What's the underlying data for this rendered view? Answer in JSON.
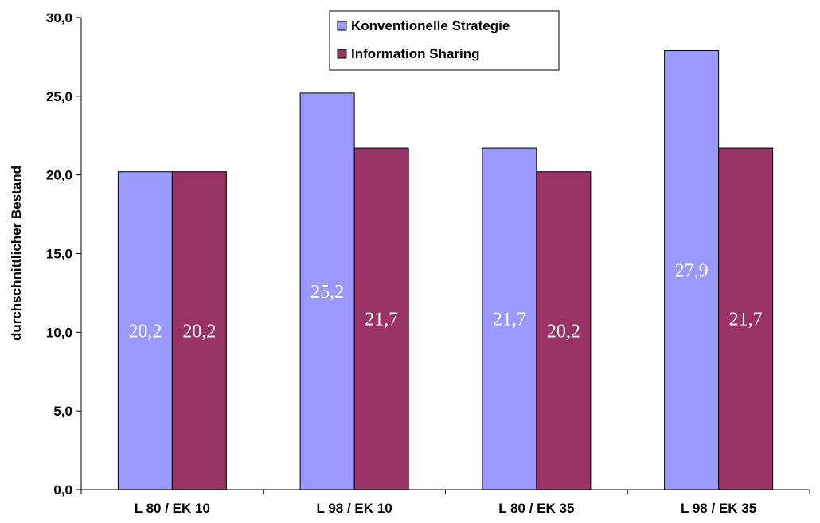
{
  "chart_data": {
    "type": "bar",
    "title": "",
    "xlabel": "",
    "ylabel": "durchschnittlicher Bestand",
    "ylim": [
      0,
      30
    ],
    "yticks": [
      "0,0",
      "5,0",
      "10,0",
      "15,0",
      "20,0",
      "25,0",
      "30,0"
    ],
    "ytick_values": [
      0,
      5,
      10,
      15,
      20,
      25,
      30
    ],
    "categories": [
      "L 80 / EK 10",
      "L 98 / EK 10",
      "L 80 / EK 35",
      "L 98 / EK 35"
    ],
    "series": [
      {
        "name": "Konventionelle Strategie",
        "color": "#9999ff",
        "values": [
          20.2,
          25.2,
          21.7,
          27.9
        ],
        "labels": [
          "20,2",
          "25,2",
          "21,7",
          "27,9"
        ]
      },
      {
        "name": "Information Sharing",
        "color": "#993366",
        "values": [
          20.2,
          21.7,
          20.2,
          21.7
        ],
        "labels": [
          "20,2",
          "21,7",
          "20,2",
          "21,7"
        ]
      }
    ],
    "grid": false,
    "legend_position": "top-center"
  }
}
